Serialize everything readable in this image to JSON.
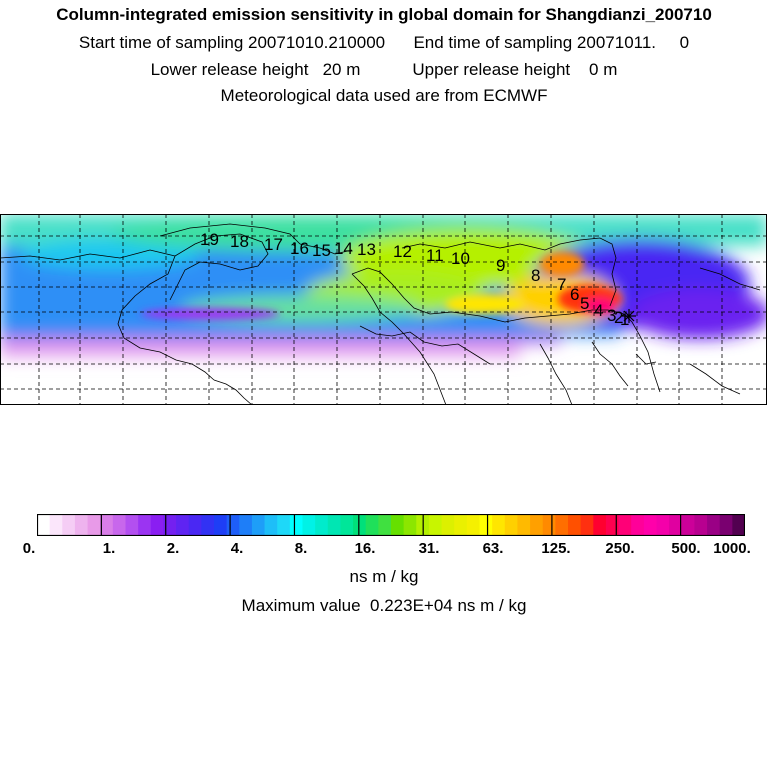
{
  "header": {
    "title": "Column-integrated emission sensitivity in global domain for Shangdianzi_200710",
    "sampling": "Start time of sampling 20071010.210000      End time of sampling 20071011.     0",
    "release": "Lower release height   20 m           Upper release height    0 m",
    "met": "Meteorological data used are from ECMWF"
  },
  "map": {
    "trajectory_labels": [
      "1",
      "2",
      "3",
      "4",
      "5",
      "6",
      "7",
      "8",
      "9",
      "10",
      "11",
      "12",
      "13",
      "14",
      "15",
      "16",
      "17",
      "18",
      "19"
    ],
    "grid": "dashed",
    "background_color": "#ffffff",
    "coastline_color": "#000000",
    "station_marker_icon": "star-icon"
  },
  "colorbar": {
    "colors": [
      "#ffffff",
      "#fbe6fb",
      "#f5cdf5",
      "#eeb3ee",
      "#e89ae8",
      "#d97ee8",
      "#c867ec",
      "#b34ff0",
      "#9b34f2",
      "#8a1ef2",
      "#7420f0",
      "#5f24f2",
      "#4a28f3",
      "#3232f4",
      "#1e3ef6",
      "#1e5ef8",
      "#1e7ef8",
      "#1e9ef8",
      "#1ebef8",
      "#1ed8f8",
      "#00ffff",
      "#00f2e6",
      "#00ebcc",
      "#00e6b3",
      "#00e699",
      "#00e07a",
      "#1fe05a",
      "#40e040",
      "#66e000",
      "#8ce600",
      "#b3f000",
      "#c8f500",
      "#dcf000",
      "#eaf000",
      "#f5f000",
      "#ffff00",
      "#ffe600",
      "#ffd000",
      "#ffba00",
      "#ffa000",
      "#ff8a00",
      "#ff6e00",
      "#ff5000",
      "#ff3010",
      "#ff0030",
      "#ff0050",
      "#ff0077",
      "#ff0099",
      "#ff00aa",
      "#f400aa",
      "#e000a0",
      "#cc0099",
      "#b80090",
      "#9a0085",
      "#7a0070",
      "#520050"
    ],
    "ticks": [
      "0.",
      "1.",
      "2.",
      "4.",
      "8.",
      "16.",
      "31.",
      "63.",
      "125.",
      "250.",
      "500.",
      "1000."
    ],
    "unit": "ns m / kg",
    "max_value_text": "Maximum value  0.223E+04 ns m / kg"
  }
}
